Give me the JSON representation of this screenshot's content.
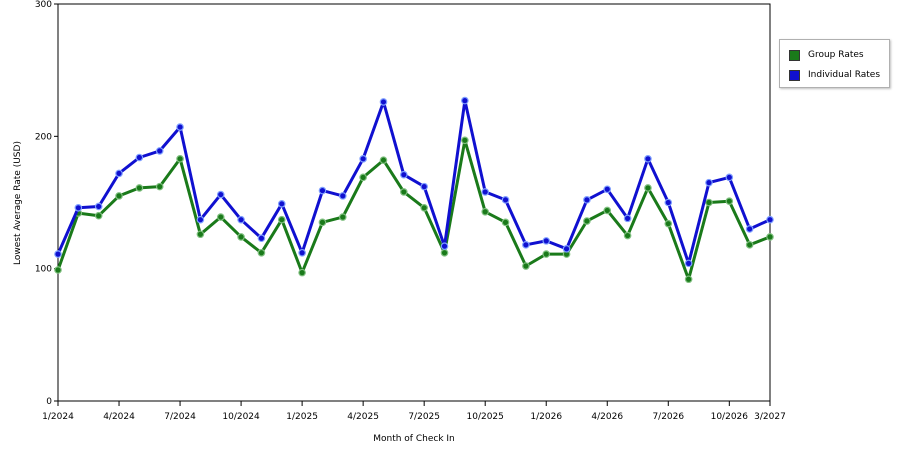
{
  "chart_data": {
    "type": "line",
    "xlabel": "Month of Check In",
    "ylabel": "Lowest Average Rate (USD)",
    "ylim": [
      0,
      300
    ],
    "yticks": [
      "0",
      "100",
      "200",
      "300"
    ],
    "xtick_labels": [
      "1/2024",
      "4/2024",
      "7/2024",
      "10/2024",
      "1/2025",
      "4/2025",
      "7/2025",
      "10/2025",
      "1/2026",
      "4/2026",
      "7/2026",
      "10/2026",
      "3/2027"
    ],
    "xtick_month_index": [
      0,
      3,
      6,
      9,
      12,
      15,
      18,
      21,
      24,
      27,
      30,
      33,
      35
    ],
    "grid": "horizontal-dashed",
    "legend_position": "right",
    "categories": [
      "1/2024",
      "2/2024",
      "3/2024",
      "4/2024",
      "5/2024",
      "6/2024",
      "7/2024",
      "8/2024",
      "9/2024",
      "10/2024",
      "11/2024",
      "12/2024",
      "1/2025",
      "2/2025",
      "3/2025",
      "4/2025",
      "5/2025",
      "6/2025",
      "7/2025",
      "8/2025",
      "9/2025",
      "10/2025",
      "11/2025",
      "12/2025",
      "1/2026",
      "2/2026",
      "3/2026",
      "4/2026",
      "5/2026",
      "6/2026",
      "7/2026",
      "8/2026",
      "9/2026",
      "10/2026",
      "11/2026",
      "3/2027"
    ],
    "series": [
      {
        "name": "Group Rates",
        "color": "#1a7a1a",
        "values": [
          99,
          142,
          140,
          155,
          161,
          162,
          183,
          126,
          139,
          124,
          112,
          137,
          97,
          135,
          139,
          169,
          182,
          158,
          146,
          112,
          197,
          143,
          135,
          102,
          111,
          111,
          136,
          144,
          125,
          161,
          134,
          92,
          150,
          151,
          118,
          124
        ]
      },
      {
        "name": "Individual Rates",
        "color": "#1010d0",
        "values": [
          111,
          146,
          147,
          172,
          184,
          189,
          207,
          137,
          156,
          137,
          123,
          149,
          112,
          159,
          155,
          183,
          226,
          171,
          162,
          117,
          227,
          158,
          152,
          118,
          121,
          115,
          152,
          160,
          138,
          183,
          150,
          104,
          165,
          169,
          130,
          137
        ]
      }
    ]
  }
}
